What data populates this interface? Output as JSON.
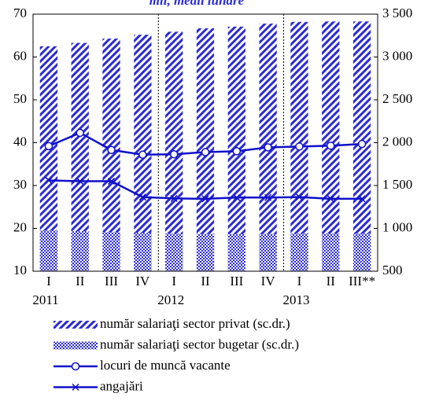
{
  "chart_data": {
    "type": "bar-line",
    "subtitle": "mii, medii lunare",
    "categories": [
      "I",
      "II",
      "III",
      "IV",
      "I",
      "II",
      "III",
      "IV",
      "I",
      "II",
      "III**"
    ],
    "years": [
      "2011",
      "2012",
      "2013"
    ],
    "series": [
      {
        "name": "număr salariaţi sector privat (sc.dr.)",
        "kind": "bar",
        "axis": "y2",
        "color": "#2b2bd6",
        "hatch": "diagonal",
        "values": [
          3125,
          3165,
          3215,
          3260,
          3295,
          3335,
          3355,
          3390,
          3410,
          3415,
          3415
        ]
      },
      {
        "name": "număr salariaţi sector bugetar (sc.dr.)",
        "kind": "bar",
        "axis": "y2",
        "color": "#2b2bd6",
        "hatch": "checker",
        "values": [
          975,
          965,
          955,
          945,
          940,
          935,
          935,
          935,
          940,
          940,
          940
        ]
      },
      {
        "name": "locuri de muncă vacante",
        "kind": "line",
        "marker": "circle",
        "color": "#1010c8",
        "values": [
          39.2,
          42.3,
          38.3,
          37.2,
          37.3,
          37.8,
          38.0,
          38.9,
          39.1,
          39.3,
          39.7
        ]
      },
      {
        "name": "angajări",
        "kind": "line",
        "marker": "x",
        "color": "#1010c8",
        "values": [
          31.2,
          31.0,
          31.0,
          27.3,
          27.0,
          26.9,
          27.2,
          27.2,
          27.3,
          26.9,
          26.9
        ]
      }
    ],
    "ylim": [
      10,
      70
    ],
    "yticks": [
      10,
      20,
      30,
      40,
      50,
      60,
      70
    ],
    "y2lim": [
      500,
      3500
    ],
    "y2ticks": [
      500,
      {
        "value": 1000,
        "label": "1 000"
      },
      {
        "value": 1500,
        "label": "1 500"
      },
      {
        "value": 2000,
        "label": "2 000"
      },
      {
        "value": 2500,
        "label": "2 500"
      },
      {
        "value": 3000,
        "label": "3 000"
      },
      {
        "value": 3500,
        "label": "3 500"
      }
    ]
  }
}
